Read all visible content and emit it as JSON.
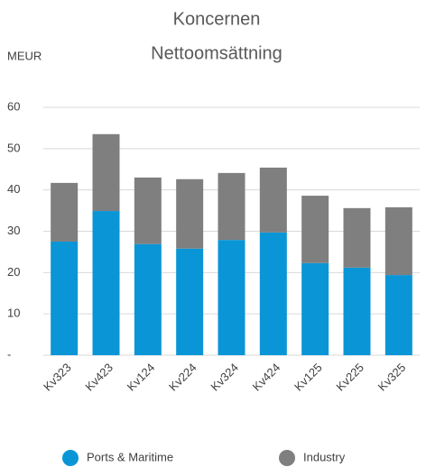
{
  "chart_data": {
    "type": "bar",
    "stacked": true,
    "title": [
      "Koncernen",
      "Nettoomsättning"
    ],
    "y_label": "MEUR",
    "categories": [
      "Kv323",
      "Kv423",
      "Kv124",
      "Kv224",
      "Kv324",
      "Kv424",
      "Kv125",
      "Kv225",
      "Kv325"
    ],
    "series": [
      {
        "name": "Ports & Maritime",
        "color": "#0a96d6",
        "values": [
          27.5,
          34.9,
          26.9,
          25.8,
          27.9,
          29.7,
          22.3,
          21.2,
          19.4
        ]
      },
      {
        "name": "Industry",
        "color": "#7f7f7f",
        "values": [
          14.2,
          18.6,
          16.1,
          16.8,
          16.2,
          15.7,
          16.3,
          14.4,
          16.4
        ]
      }
    ],
    "ylim": [
      0,
      60
    ],
    "yticks": [
      {
        "value": 0,
        "label": "-"
      },
      10,
      20,
      30,
      40,
      50,
      60
    ],
    "grid": true,
    "legend": "bottom"
  }
}
